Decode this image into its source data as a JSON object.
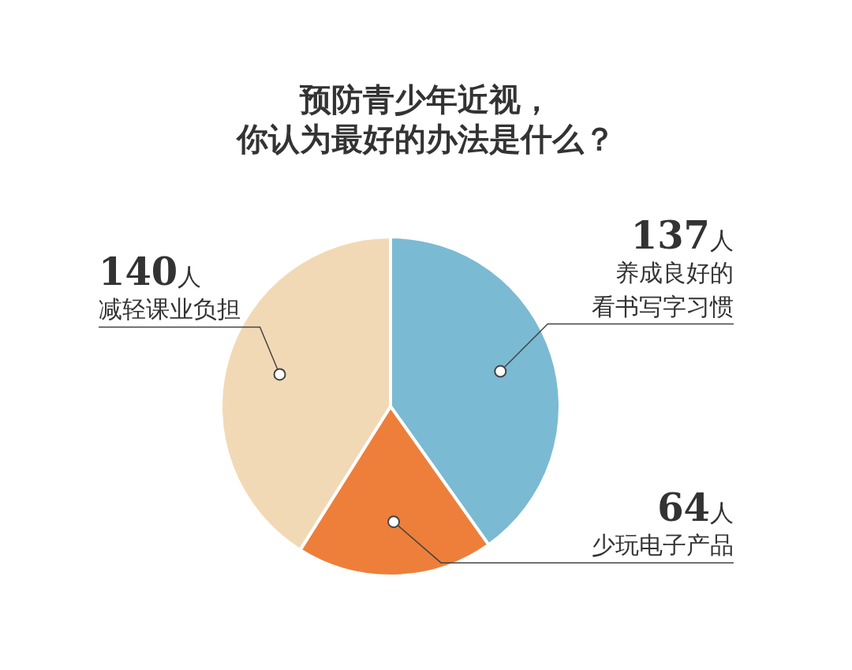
{
  "chart_data": {
    "type": "pie",
    "title": "预防青少年近视，你认为最好的办法是什么？",
    "categories": [
      "养成良好的看书写字习惯",
      "少玩电子产品",
      "减轻课业负担"
    ],
    "values": [
      137,
      64,
      140
    ],
    "colors": [
      "#7bbad3",
      "#ee7f3a",
      "#f2d9b5"
    ],
    "value_labels": [
      "137人",
      "64人",
      "140人"
    ]
  }
}
